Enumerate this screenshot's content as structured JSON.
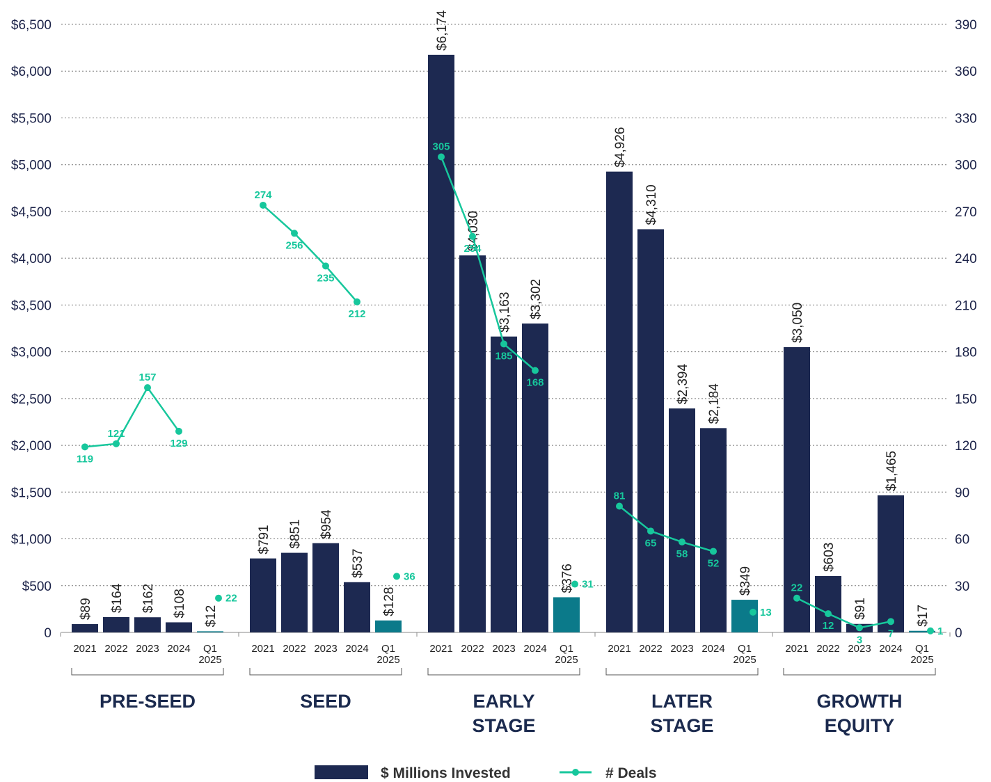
{
  "chart_data": {
    "type": "bar",
    "groups": [
      {
        "name": "PRE-SEED",
        "name_lines": [
          "PRE-SEED"
        ],
        "categories": [
          [
            "2021"
          ],
          [
            "2022"
          ],
          [
            "2023"
          ],
          [
            "2024"
          ],
          [
            "Q1",
            "2025"
          ]
        ],
        "values": [
          89,
          164,
          162,
          108,
          12
        ],
        "value_labels": [
          "$89",
          "$164",
          "$162",
          "$108",
          "$12"
        ],
        "deals": [
          119,
          121,
          157,
          129,
          22
        ]
      },
      {
        "name": "SEED",
        "name_lines": [
          "SEED"
        ],
        "categories": [
          [
            "2021"
          ],
          [
            "2022"
          ],
          [
            "2023"
          ],
          [
            "2024"
          ],
          [
            "Q1",
            "2025"
          ]
        ],
        "values": [
          791,
          851,
          954,
          537,
          128
        ],
        "value_labels": [
          "$791",
          "$851",
          "$954",
          "$537",
          "$128"
        ],
        "deals": [
          274,
          256,
          235,
          212,
          36
        ]
      },
      {
        "name": "EARLY STAGE",
        "name_lines": [
          "EARLY",
          "STAGE"
        ],
        "categories": [
          [
            "2021"
          ],
          [
            "2022"
          ],
          [
            "2023"
          ],
          [
            "2024"
          ],
          [
            "Q1",
            "2025"
          ]
        ],
        "values": [
          6174,
          4030,
          3163,
          3302,
          376
        ],
        "value_labels": [
          "$6,174",
          "$4,030",
          "$3,163",
          "$3,302",
          "$376"
        ],
        "deals": [
          305,
          254,
          185,
          168,
          31
        ]
      },
      {
        "name": "LATER STAGE",
        "name_lines": [
          "LATER",
          "STAGE"
        ],
        "categories": [
          [
            "2021"
          ],
          [
            "2022"
          ],
          [
            "2023"
          ],
          [
            "2024"
          ],
          [
            "Q1",
            "2025"
          ]
        ],
        "values": [
          4926,
          4310,
          2394,
          2184,
          349
        ],
        "value_labels": [
          "$4,926",
          "$4,310",
          "$2,394",
          "$2,184",
          "$349"
        ],
        "deals": [
          81,
          65,
          58,
          52,
          13
        ]
      },
      {
        "name": "GROWTH EQUITY",
        "name_lines": [
          "GROWTH",
          "EQUITY"
        ],
        "categories": [
          [
            "2021"
          ],
          [
            "2022"
          ],
          [
            "2023"
          ],
          [
            "2024"
          ],
          [
            "Q1",
            "2025"
          ]
        ],
        "values": [
          3050,
          603,
          91,
          1465,
          17
        ],
        "value_labels": [
          "$3,050",
          "$603",
          "$91",
          "$1,465",
          "$17"
        ],
        "deals": [
          22,
          12,
          3,
          7,
          1
        ]
      }
    ],
    "y_left": {
      "ticks": [
        0,
        500,
        1000,
        1500,
        2000,
        2500,
        3000,
        3500,
        4000,
        4500,
        5000,
        5500,
        6000,
        6500
      ],
      "tick_labels": [
        "0",
        "$500",
        "$1,000",
        "$1,500",
        "$2,000",
        "$2,500",
        "$3,000",
        "$3,500",
        "$4,000",
        "$4,500",
        "$5,000",
        "$5,500",
        "$6,000",
        "$6,500"
      ],
      "ylim": [
        0,
        6500
      ]
    },
    "y_right": {
      "ticks": [
        0,
        30,
        60,
        90,
        120,
        150,
        180,
        210,
        240,
        270,
        300,
        330,
        360,
        390
      ],
      "tick_labels": [
        "0",
        "30",
        "60",
        "90",
        "120",
        "150",
        "180",
        "210",
        "240",
        "270",
        "300",
        "330",
        "360",
        "390"
      ],
      "ylim": [
        0,
        390
      ]
    },
    "grid": "horizontal-dotted",
    "legend": {
      "position": "bottom-center",
      "items": [
        {
          "label": "$ Millions Invested",
          "kind": "bar"
        },
        {
          "label": "# Deals",
          "kind": "line"
        }
      ]
    },
    "colors": {
      "bar": "#1d2951",
      "bar_highlight": "#0b7a8a",
      "line": "#17c79c",
      "group_label": "#1b2a4e"
    }
  }
}
